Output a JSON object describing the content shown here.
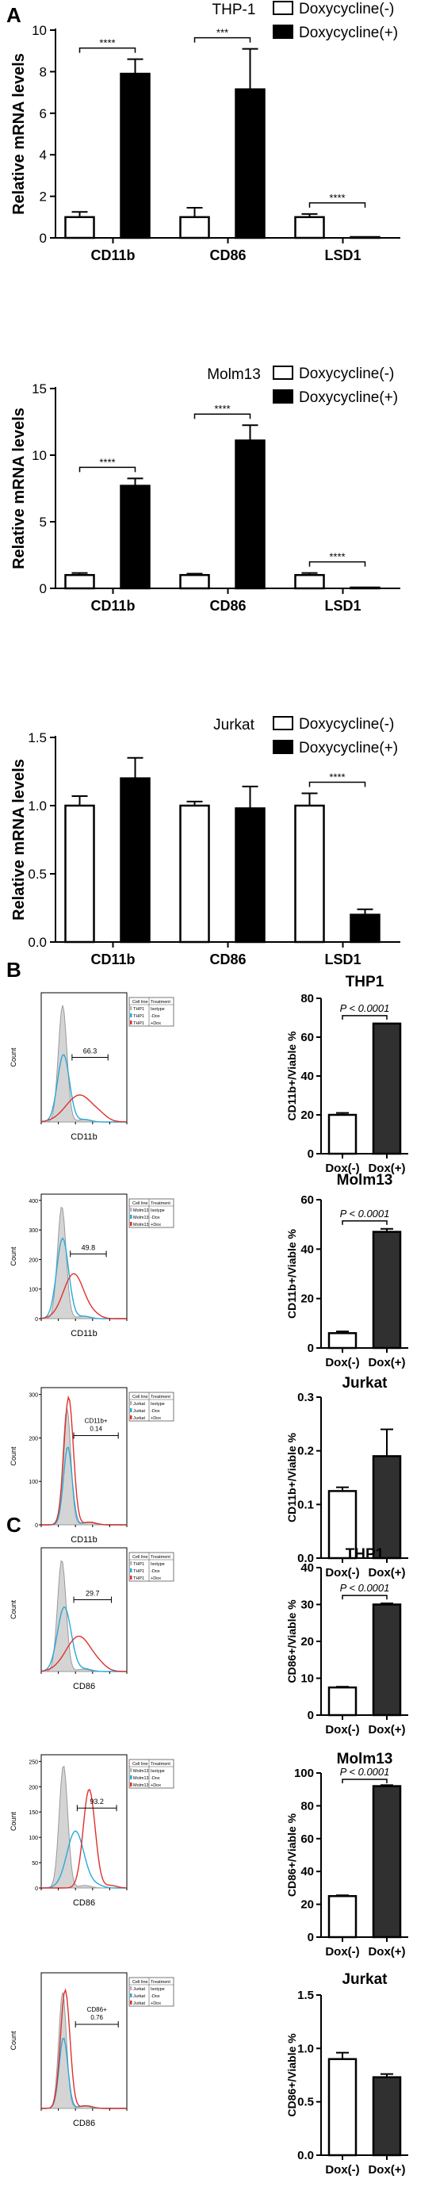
{
  "panels": [
    {
      "letter": "A"
    },
    {
      "letter": "B"
    },
    {
      "letter": "C"
    }
  ],
  "flow": {
    "legend_headers": [
      "Cell line",
      "Treatment"
    ],
    "legend_treatments": [
      "Isotype",
      "-Dox",
      "+Dox"
    ],
    "legend_colors": [
      "#b8b8b8",
      "#2aa8d8",
      "#e0302c"
    ],
    "count_label": "Count",
    "histograms": [
      {
        "cell_line": "THP1",
        "marker": "CD11b",
        "gate_label": "66.3",
        "yticks": []
      },
      {
        "cell_line": "Molm13",
        "marker": "CD11b",
        "gate_label": "49.8",
        "yticks": [
          "0",
          "100",
          "200",
          "300",
          "400"
        ]
      },
      {
        "cell_line": "Jurkat",
        "marker": "CD11b",
        "gate_label": "CD11b+",
        "gate_value": "0.14",
        "yticks": [
          "0",
          "100",
          "200",
          "300"
        ]
      },
      {
        "cell_line": "THP1",
        "marker": "CD86",
        "gate_label": "29.7",
        "yticks": []
      },
      {
        "cell_line": "Molm13",
        "marker": "CD86",
        "gate_label": "93.2",
        "yticks": [
          "0",
          "50",
          "100",
          "150",
          "200",
          "250"
        ]
      },
      {
        "cell_line": "Jurkat",
        "marker": "CD86",
        "gate_label": "CD86+",
        "gate_value": "0.76",
        "yticks": []
      }
    ]
  },
  "chart_data": [
    {
      "type": "bar",
      "panel": "A",
      "title": "THP-1",
      "categories": [
        "CD11b",
        "CD86",
        "LSD1"
      ],
      "series": [
        {
          "name": "Doxycycline(-)",
          "values": [
            1.0,
            1.0,
            1.0
          ],
          "errors": [
            0.25,
            0.45,
            0.15
          ],
          "fill": "#ffffff"
        },
        {
          "name": "Doxycycline(+)",
          "values": [
            7.9,
            7.15,
            0.02
          ],
          "errors": [
            0.7,
            1.95,
            0
          ],
          "fill": "#000000"
        }
      ],
      "significance": [
        "****",
        "***",
        "****"
      ],
      "ylabel": "Relative mRNA levels",
      "ylim": [
        0,
        10
      ],
      "yticks": [
        0,
        2,
        4,
        6,
        8,
        10
      ]
    },
    {
      "type": "bar",
      "panel": "A",
      "title": "Molm13",
      "categories": [
        "CD11b",
        "CD86",
        "LSD1"
      ],
      "series": [
        {
          "name": "Doxycycline(-)",
          "values": [
            1.0,
            1.0,
            1.0
          ],
          "errors": [
            0.15,
            0.1,
            0.15
          ],
          "fill": "#ffffff"
        },
        {
          "name": "Doxycycline(+)",
          "values": [
            7.7,
            11.1,
            0.05
          ],
          "errors": [
            0.55,
            1.15,
            0
          ],
          "fill": "#000000"
        }
      ],
      "significance": [
        "****",
        "****",
        "****"
      ],
      "ylabel": "Relative mRNA levels",
      "ylim": [
        0,
        15
      ],
      "yticks": [
        0,
        5,
        10,
        15
      ]
    },
    {
      "type": "bar",
      "panel": "A",
      "title": "Jurkat",
      "categories": [
        "CD11b",
        "CD86",
        "LSD1"
      ],
      "series": [
        {
          "name": "Doxycycline(-)",
          "values": [
            1.0,
            1.0,
            1.0
          ],
          "errors": [
            0.07,
            0.03,
            0.09
          ],
          "fill": "#ffffff"
        },
        {
          "name": "Doxycycline(+)",
          "values": [
            1.2,
            0.98,
            0.2
          ],
          "errors": [
            0.15,
            0.16,
            0.04
          ],
          "fill": "#000000"
        }
      ],
      "significance": [
        "",
        "",
        "****"
      ],
      "ylabel": "Relative mRNA levels",
      "ylim": [
        0,
        1.5
      ],
      "yticks": [
        "0.0",
        "0.5",
        "1.0",
        "1.5"
      ]
    },
    {
      "type": "bar",
      "panel": "B",
      "title": "THP1",
      "categories": [
        "Dox(-)",
        "Dox(+)"
      ],
      "values": [
        20,
        67
      ],
      "errors": [
        1,
        0
      ],
      "pvalue": "P < 0.0001",
      "ylabel": "CD11b+/Viable %",
      "ylim": [
        0,
        80
      ],
      "yticks": [
        0,
        20,
        40,
        60,
        80
      ]
    },
    {
      "type": "bar",
      "panel": "B",
      "title": "Molm13",
      "categories": [
        "Dox(-)",
        "Dox(+)"
      ],
      "values": [
        6,
        47
      ],
      "errors": [
        0.7,
        1.2
      ],
      "pvalue": "P < 0.0001",
      "ylabel": "CD11b+/Viable %",
      "ylim": [
        0,
        60
      ],
      "yticks": [
        0,
        20,
        40,
        60
      ]
    },
    {
      "type": "bar",
      "panel": "B",
      "title": "Jurkat",
      "categories": [
        "Dox(-)",
        "Dox(+)"
      ],
      "values": [
        0.125,
        0.19
      ],
      "errors": [
        0.007,
        0.05
      ],
      "pvalue": "",
      "ylabel": "CD11b+/Viable %",
      "ylim": [
        0,
        0.3
      ],
      "yticks": [
        "0.0",
        "0.1",
        "0.2",
        "0.3"
      ]
    },
    {
      "type": "bar",
      "panel": "C",
      "title": "THP1",
      "categories": [
        "Dox(-)",
        "Dox(+)"
      ],
      "values": [
        7.5,
        30
      ],
      "errors": [
        0.2,
        0.3
      ],
      "pvalue": "P < 0.0001",
      "ylabel": "CD86+/Viable %",
      "ylim": [
        0,
        40
      ],
      "yticks": [
        0,
        10,
        20,
        30,
        40
      ]
    },
    {
      "type": "bar",
      "panel": "C",
      "title": "Molm13",
      "categories": [
        "Dox(-)",
        "Dox(+)"
      ],
      "values": [
        25,
        92
      ],
      "errors": [
        0.5,
        0.6
      ],
      "pvalue": "P < 0.0001",
      "ylabel": "CD86+/Viable %",
      "ylim": [
        0,
        100
      ],
      "yticks": [
        0,
        20,
        40,
        60,
        80,
        100
      ]
    },
    {
      "type": "bar",
      "panel": "C",
      "title": "Jurkat",
      "categories": [
        "Dox(-)",
        "Dox(+)"
      ],
      "values": [
        0.9,
        0.73
      ],
      "errors": [
        0.06,
        0.03
      ],
      "pvalue": "",
      "ylabel": "CD86+/Viable %",
      "ylim": [
        0,
        1.5
      ],
      "yticks": [
        "0.0",
        "0.5",
        "1.0",
        "1.5"
      ]
    }
  ]
}
